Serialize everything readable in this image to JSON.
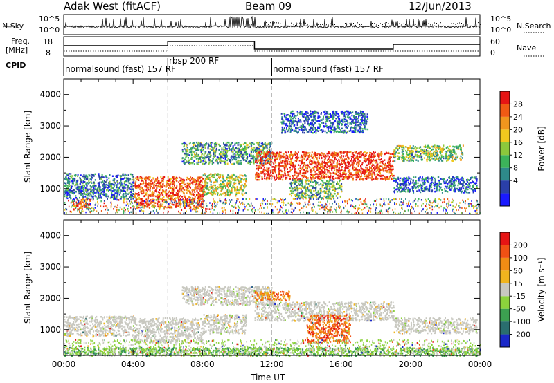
{
  "header": {
    "station": "Adak West (fitACF)",
    "beam": "Beam 09",
    "date": "12/Jun/2013"
  },
  "top_panels": {
    "nsky_label": "N.Sky",
    "nsky_ticks": [
      "10^5",
      "10^0"
    ],
    "nsearch_label": "N.Search",
    "freq_label_1": "Freq.",
    "freq_label_2": "[MHz]",
    "freq_ticks": [
      "18",
      "8"
    ],
    "nave_label": "Nave",
    "nave_ticks": [
      "60",
      "0"
    ],
    "cpid_label": "CPID",
    "cpid_segments": [
      {
        "label": "normalsound (fast) 157 RF",
        "start_hour": 0
      },
      {
        "label": "rbsp 200 RF",
        "start_hour": 6
      },
      {
        "label": "normalsound (fast) 157 RF",
        "start_hour": 12
      }
    ]
  },
  "chart_data": [
    {
      "type": "heatmap",
      "title": "Power",
      "ylabel": "Slant Range [km]",
      "xlabel": "Time UT",
      "x_ticks": [
        "00:00",
        "04:00",
        "08:00",
        "12:00",
        "16:00",
        "20:00",
        "00:00"
      ],
      "x_tick_hours": [
        0,
        4,
        8,
        12,
        16,
        20,
        24
      ],
      "xlim": [
        0,
        24
      ],
      "ylim": [
        180,
        4500
      ],
      "y_ticks": [
        1000,
        2000,
        3000,
        4000
      ],
      "colorbar_label": "Power [dB]",
      "colorbar_ticks": [
        "28",
        "24",
        "20",
        "16",
        "12",
        "8",
        "4"
      ],
      "colorbar_colors": [
        "#1a1aff",
        "#2a3fa8",
        "#2e8a8a",
        "#3cb35a",
        "#8cc83c",
        "#f0c81e",
        "#f0961e",
        "#f05a14",
        "#e61414"
      ],
      "regions": [
        {
          "t0": 0.0,
          "t1": 4.0,
          "r0": 700,
          "r1": 1500,
          "level": 0.25
        },
        {
          "t0": 0.5,
          "t1": 1.5,
          "r0": 350,
          "r1": 700,
          "level": 0.95
        },
        {
          "t0": 4.0,
          "t1": 8.0,
          "r0": 400,
          "r1": 1400,
          "level": 0.85
        },
        {
          "t0": 8.0,
          "t1": 10.5,
          "r0": 800,
          "r1": 1500,
          "level": 0.55
        },
        {
          "t0": 6.8,
          "t1": 12.0,
          "r0": 1800,
          "r1": 2500,
          "level": 0.35
        },
        {
          "t0": 11.0,
          "t1": 19.0,
          "r0": 1300,
          "r1": 2200,
          "level": 0.9
        },
        {
          "t0": 13.0,
          "t1": 16.0,
          "r0": 700,
          "r1": 1300,
          "level": 0.4
        },
        {
          "t0": 19.0,
          "t1": 23.8,
          "r0": 900,
          "r1": 1400,
          "level": 0.2
        },
        {
          "t0": 19.0,
          "t1": 23.0,
          "r0": 1900,
          "r1": 2400,
          "level": 0.45
        },
        {
          "t0": 12.5,
          "t1": 17.5,
          "r0": 2800,
          "r1": 3500,
          "level": 0.2
        }
      ]
    },
    {
      "type": "heatmap",
      "title": "Velocity",
      "ylabel": "Slant Range [km]",
      "xlabel": "Time UT",
      "x_ticks": [
        "00:00",
        "04:00",
        "08:00",
        "12:00",
        "16:00",
        "20:00",
        "00:00"
      ],
      "x_tick_hours": [
        0,
        4,
        8,
        12,
        16,
        20,
        24
      ],
      "xlim": [
        0,
        24
      ],
      "ylim": [
        180,
        4500
      ],
      "y_ticks": [
        1000,
        2000,
        3000,
        4000
      ],
      "colorbar_label": "Velocity [m s⁻¹]",
      "colorbar_ticks": [
        "200",
        "100",
        "50",
        "15",
        "-15",
        "-50",
        "-100",
        "-200"
      ],
      "colorbar_colors": [
        "#1a28c8",
        "#2a6e6e",
        "#3ca050",
        "#8cd23c",
        "#c8c8c0",
        "#f0b41e",
        "#f08c14",
        "#f05014",
        "#e61414"
      ],
      "regions": [
        {
          "t0": 0.0,
          "t1": 4.0,
          "r0": 800,
          "r1": 1450,
          "level": 0.5
        },
        {
          "t0": 4.0,
          "t1": 8.0,
          "r0": 600,
          "r1": 1400,
          "level": 0.5
        },
        {
          "t0": 8.0,
          "t1": 10.5,
          "r0": 900,
          "r1": 1500,
          "level": 0.5
        },
        {
          "t0": 6.8,
          "t1": 12.0,
          "r0": 1800,
          "r1": 2400,
          "level": 0.5
        },
        {
          "t0": 11.0,
          "t1": 19.0,
          "r0": 1300,
          "r1": 1900,
          "level": 0.5
        },
        {
          "t0": 11.0,
          "t1": 13.0,
          "r0": 1950,
          "r1": 2250,
          "level": 0.75
        },
        {
          "t0": 14.0,
          "t1": 16.5,
          "r0": 600,
          "r1": 1500,
          "level": 0.8
        },
        {
          "t0": 19.0,
          "t1": 23.8,
          "r0": 900,
          "r1": 1400,
          "level": 0.5
        },
        {
          "t0": 0.0,
          "t1": 24.0,
          "r0": 180,
          "r1": 450,
          "level": 0.35
        }
      ]
    }
  ]
}
